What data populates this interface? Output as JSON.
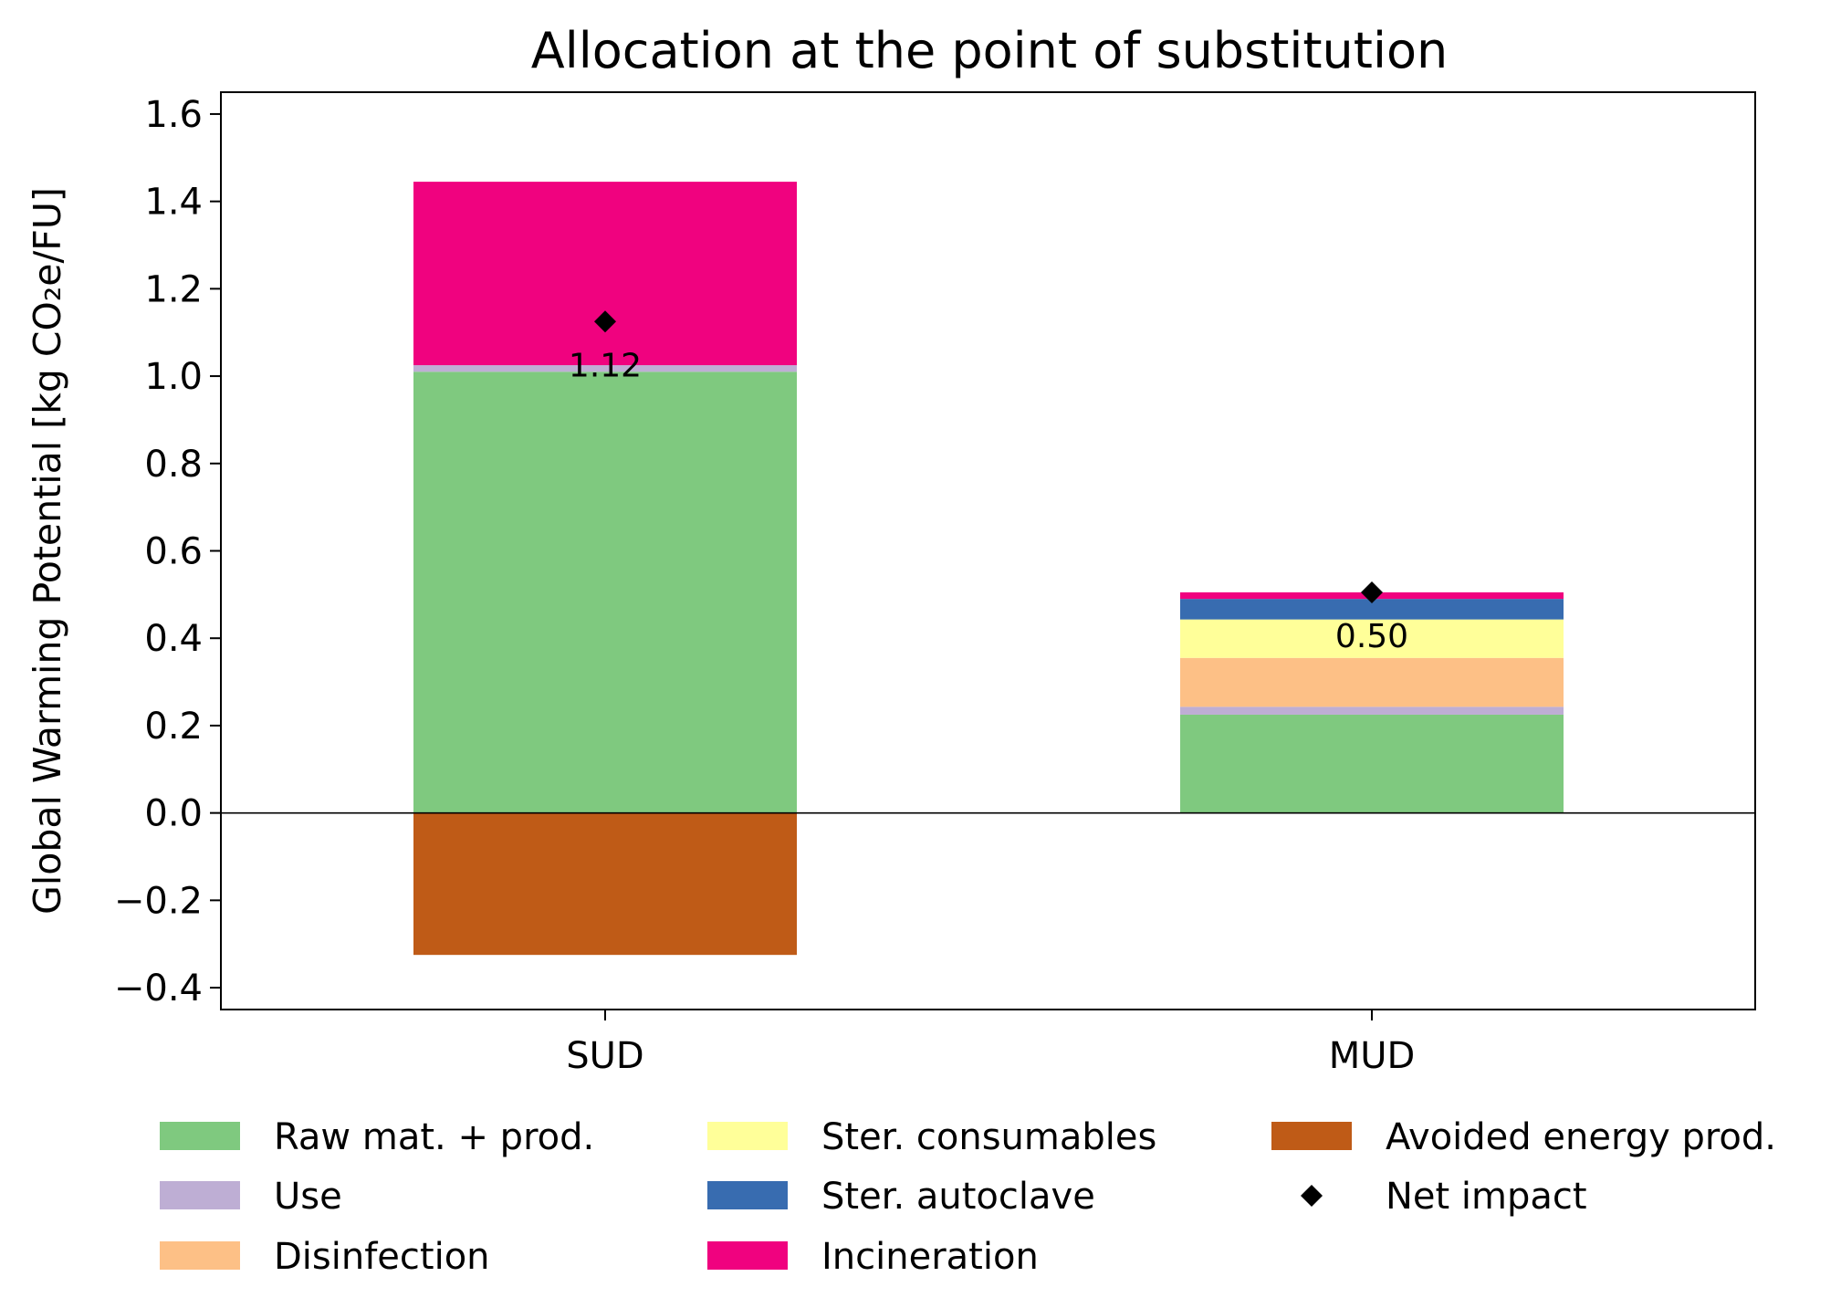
{
  "chart_data": {
    "type": "bar",
    "stacked": true,
    "title": "Allocation at the point of substitution",
    "ylabel": "Global Warming Potential [kg CO₂e/FU]",
    "xlabel": "",
    "categories": [
      "SUD",
      "MUD"
    ],
    "ylim": [
      -0.45,
      1.65
    ],
    "yticks": [
      -0.4,
      -0.2,
      0.0,
      0.2,
      0.4,
      0.6,
      0.8,
      1.0,
      1.2,
      1.4,
      1.6
    ],
    "ytick_labels": [
      "−0.4",
      "−0.2",
      "0.0",
      "0.2",
      "0.4",
      "0.6",
      "0.8",
      "1.0",
      "1.2",
      "1.4",
      "1.6"
    ],
    "grid": false,
    "legend_position": "bottom",
    "series": [
      {
        "name": "Raw mat. + prod.",
        "color": "#7fc97f",
        "values": [
          1.01,
          0.225
        ]
      },
      {
        "name": "Use",
        "color": "#beaed4",
        "values": [
          0.015,
          0.018
        ]
      },
      {
        "name": "Disinfection",
        "color": "#fdc086",
        "values": [
          0.0,
          0.112
        ]
      },
      {
        "name": "Ster. consumables",
        "color": "#ffff99",
        "values": [
          0.0,
          0.088
        ]
      },
      {
        "name": "Ster. autoclave",
        "color": "#386cb0",
        "values": [
          0.0,
          0.047
        ]
      },
      {
        "name": "Incineration",
        "color": "#f0027f",
        "values": [
          0.42,
          0.015
        ]
      },
      {
        "name": "Avoided energy prod.",
        "color": "#bf5b17",
        "values": [
          -0.325,
          0.0
        ]
      }
    ],
    "net_impact": {
      "name": "Net impact",
      "marker": "diamond",
      "color": "#000000",
      "values": [
        1.125,
        0.505
      ],
      "labels": [
        "1.12",
        "0.50"
      ]
    }
  }
}
